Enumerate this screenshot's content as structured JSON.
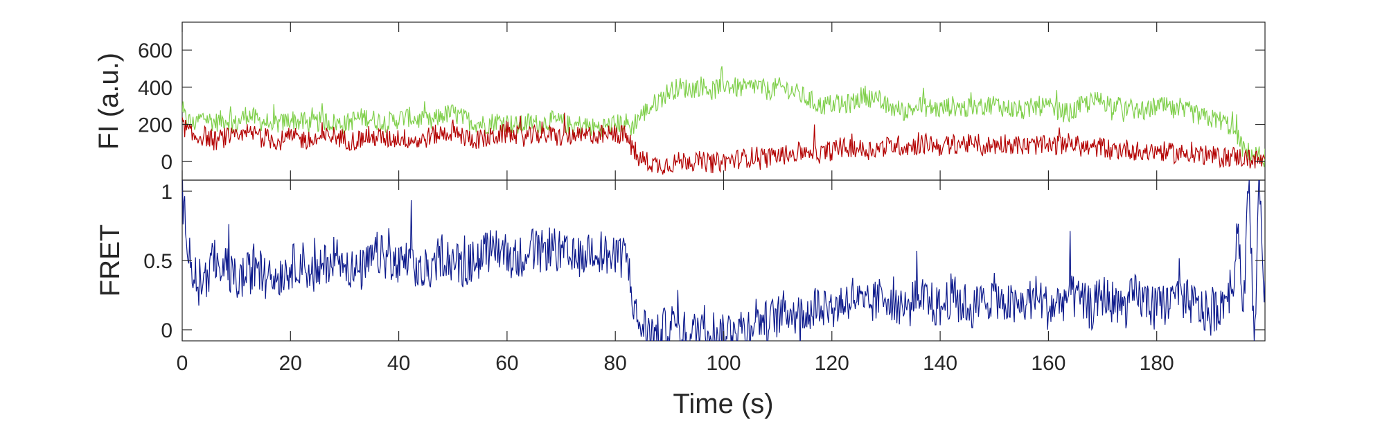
{
  "chart_data": [
    {
      "type": "line",
      "panel": "intensity",
      "ylabel": "FI (a.u.)",
      "xlabel": "",
      "xlim": [
        0,
        200
      ],
      "ylim": [
        -100,
        750
      ],
      "yticks": [
        0,
        200,
        400,
        600
      ],
      "xticks": [
        0,
        20,
        40,
        60,
        80,
        100,
        120,
        140,
        160,
        180
      ],
      "grid": false,
      "series": [
        {
          "color": "#7fcf4a",
          "x": [
            0,
            2,
            4,
            6,
            8,
            10,
            12,
            14,
            16,
            18,
            20,
            22,
            24,
            26,
            28,
            30,
            32,
            34,
            36,
            38,
            40,
            42,
            44,
            46,
            48,
            50,
            52,
            54,
            56,
            58,
            60,
            62,
            64,
            66,
            68,
            70,
            72,
            74,
            76,
            78,
            80,
            82,
            83,
            84,
            86,
            88,
            90,
            92,
            94,
            96,
            98,
            100,
            102,
            104,
            106,
            108,
            110,
            112,
            114,
            116,
            118,
            120,
            122,
            124,
            126,
            128,
            130,
            132,
            134,
            136,
            138,
            140,
            142,
            144,
            146,
            148,
            150,
            152,
            154,
            156,
            158,
            160,
            162,
            164,
            166,
            168,
            170,
            172,
            174,
            176,
            178,
            180,
            182,
            184,
            186,
            188,
            190,
            192,
            194,
            195,
            196,
            198,
            200
          ],
          "values": [
            250,
            200,
            240,
            210,
            230,
            200,
            260,
            220,
            210,
            200,
            230,
            210,
            200,
            220,
            210,
            200,
            230,
            240,
            220,
            210,
            230,
            240,
            220,
            210,
            250,
            260,
            230,
            210,
            200,
            220,
            210,
            190,
            210,
            200,
            220,
            210,
            190,
            200,
            180,
            190,
            200,
            210,
            180,
            230,
            280,
            330,
            380,
            400,
            390,
            410,
            380,
            420,
            400,
            390,
            410,
            380,
            400,
            390,
            360,
            330,
            300,
            310,
            300,
            320,
            360,
            330,
            300,
            280,
            270,
            300,
            290,
            280,
            300,
            290,
            280,
            300,
            310,
            290,
            280,
            270,
            300,
            290,
            270,
            260,
            300,
            320,
            330,
            300,
            290,
            280,
            270,
            300,
            290,
            260,
            270,
            240,
            230,
            220,
            180,
            140,
            60,
            40,
            20
          ]
        },
        {
          "color": "#b30000",
          "x": [
            0,
            2,
            4,
            6,
            8,
            10,
            12,
            14,
            16,
            18,
            20,
            22,
            24,
            26,
            28,
            30,
            32,
            34,
            36,
            38,
            40,
            42,
            44,
            46,
            48,
            50,
            52,
            54,
            56,
            58,
            60,
            62,
            64,
            66,
            68,
            70,
            72,
            74,
            76,
            78,
            80,
            82,
            83,
            84,
            86,
            88,
            90,
            92,
            94,
            96,
            98,
            100,
            102,
            104,
            106,
            108,
            110,
            112,
            114,
            116,
            118,
            120,
            122,
            124,
            126,
            128,
            130,
            132,
            134,
            136,
            138,
            140,
            142,
            144,
            146,
            148,
            150,
            152,
            154,
            156,
            158,
            160,
            162,
            164,
            166,
            168,
            170,
            172,
            174,
            176,
            178,
            180,
            182,
            184,
            186,
            188,
            190,
            192,
            194,
            196,
            198,
            200
          ],
          "values": [
            200,
            130,
            140,
            110,
            130,
            120,
            140,
            150,
            120,
            110,
            130,
            120,
            110,
            130,
            140,
            120,
            110,
            140,
            130,
            120,
            130,
            120,
            110,
            140,
            150,
            160,
            130,
            120,
            120,
            140,
            150,
            140,
            130,
            150,
            140,
            130,
            140,
            130,
            150,
            140,
            150,
            140,
            80,
            20,
            0,
            -20,
            -10,
            0,
            10,
            0,
            -10,
            0,
            10,
            20,
            30,
            20,
            30,
            40,
            50,
            60,
            40,
            60,
            70,
            80,
            60,
            70,
            80,
            90,
            80,
            90,
            100,
            80,
            90,
            100,
            90,
            80,
            90,
            100,
            90,
            80,
            90,
            80,
            90,
            100,
            80,
            70,
            80,
            60,
            70,
            60,
            50,
            60,
            50,
            40,
            50,
            40,
            30,
            20,
            30,
            20,
            10,
            0
          ]
        }
      ]
    },
    {
      "type": "line",
      "panel": "fret",
      "ylabel": "FRET",
      "xlabel": "Time (s)",
      "xlim": [
        0,
        200
      ],
      "ylim": [
        -0.08,
        1.08
      ],
      "yticks": [
        0,
        0.5,
        1
      ],
      "ytick_labels": [
        "0",
        "0.5",
        "1"
      ],
      "xticks": [
        0,
        20,
        40,
        60,
        80,
        100,
        120,
        140,
        160,
        180
      ],
      "grid": false,
      "series": [
        {
          "color": "#0d1a8c",
          "x": [
            0,
            2,
            4,
            6,
            8,
            10,
            12,
            14,
            16,
            18,
            20,
            22,
            24,
            26,
            28,
            30,
            32,
            34,
            36,
            38,
            40,
            42,
            44,
            46,
            48,
            50,
            52,
            54,
            56,
            58,
            60,
            62,
            64,
            66,
            68,
            70,
            72,
            74,
            76,
            78,
            80,
            82,
            83,
            84,
            86,
            88,
            90,
            92,
            94,
            96,
            98,
            100,
            102,
            104,
            106,
            108,
            110,
            112,
            114,
            116,
            118,
            120,
            122,
            124,
            126,
            128,
            130,
            132,
            134,
            136,
            138,
            140,
            142,
            144,
            146,
            148,
            150,
            152,
            154,
            156,
            158,
            160,
            162,
            164,
            166,
            168,
            170,
            172,
            174,
            176,
            178,
            180,
            182,
            184,
            186,
            188,
            190,
            192,
            194,
            195,
            196,
            197,
            198,
            199,
            200
          ],
          "values": [
            0.95,
            0.4,
            0.35,
            0.5,
            0.45,
            0.35,
            0.4,
            0.45,
            0.35,
            0.4,
            0.45,
            0.5,
            0.4,
            0.45,
            0.55,
            0.5,
            0.4,
            0.45,
            0.55,
            0.5,
            0.45,
            0.5,
            0.4,
            0.45,
            0.55,
            0.5,
            0.45,
            0.5,
            0.55,
            0.6,
            0.55,
            0.5,
            0.6,
            0.55,
            0.6,
            0.55,
            0.5,
            0.55,
            0.6,
            0.55,
            0.5,
            0.55,
            0.3,
            0.05,
            0.0,
            -0.05,
            0.05,
            0.0,
            -0.05,
            0.05,
            0.0,
            -0.05,
            0.05,
            0.0,
            0.1,
            0.05,
            0.1,
            0.15,
            0.1,
            0.15,
            0.2,
            0.15,
            0.2,
            0.25,
            0.15,
            0.2,
            0.25,
            0.2,
            0.15,
            0.25,
            0.2,
            0.15,
            0.25,
            0.2,
            0.15,
            0.2,
            0.25,
            0.2,
            0.15,
            0.2,
            0.25,
            0.15,
            0.2,
            0.25,
            0.2,
            0.15,
            0.25,
            0.2,
            0.15,
            0.25,
            0.2,
            0.15,
            0.2,
            0.25,
            0.2,
            0.15,
            0.1,
            0.2,
            0.3,
            0.8,
            0.1,
            1.1,
            -0.1,
            1.1,
            0.2
          ]
        }
      ]
    }
  ]
}
